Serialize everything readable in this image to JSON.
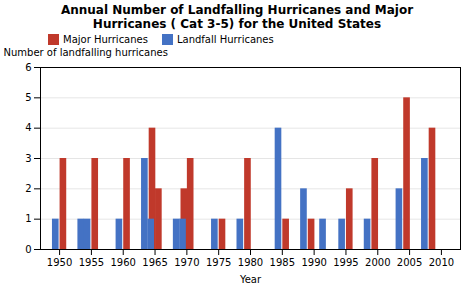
{
  "chart_data": {
    "type": "bar",
    "title": "Annual Number of Landfalling Hurricanes and Major\nHurricanes ( Cat 3-5) for the United States",
    "x_label": "Year",
    "y_label": "Number of landfalling hurricanes",
    "x": [
      1950,
      1954,
      1955,
      1960,
      1964,
      1965,
      1969,
      1970,
      1975,
      1979,
      1985,
      1989,
      1992,
      1995,
      1999,
      2004,
      2008
    ],
    "series": [
      {
        "name": "Major  Hurricanes",
        "color": "#C0392B",
        "values": [
          3,
          0,
          3,
          3,
          4,
          2,
          2,
          3,
          1,
          3,
          1,
          1,
          0,
          2,
          3,
          5,
          4
        ]
      },
      {
        "name": "Landfall Hurricanes",
        "color": "#4472C4",
        "values": [
          1,
          1,
          1,
          1,
          3,
          1,
          1,
          1,
          1,
          1,
          4,
          2,
          1,
          1,
          1,
          2,
          3
        ]
      }
    ],
    "xlim": [
      1947,
      2013
    ],
    "xticks": [
      1950,
      1955,
      1960,
      1965,
      1970,
      1975,
      1980,
      1985,
      1990,
      1995,
      2000,
      2005,
      2010
    ],
    "ylim": [
      0,
      6
    ],
    "yticks": [
      0,
      1,
      2,
      3,
      4,
      5,
      6
    ],
    "grid": true,
    "legend": "upper left"
  }
}
